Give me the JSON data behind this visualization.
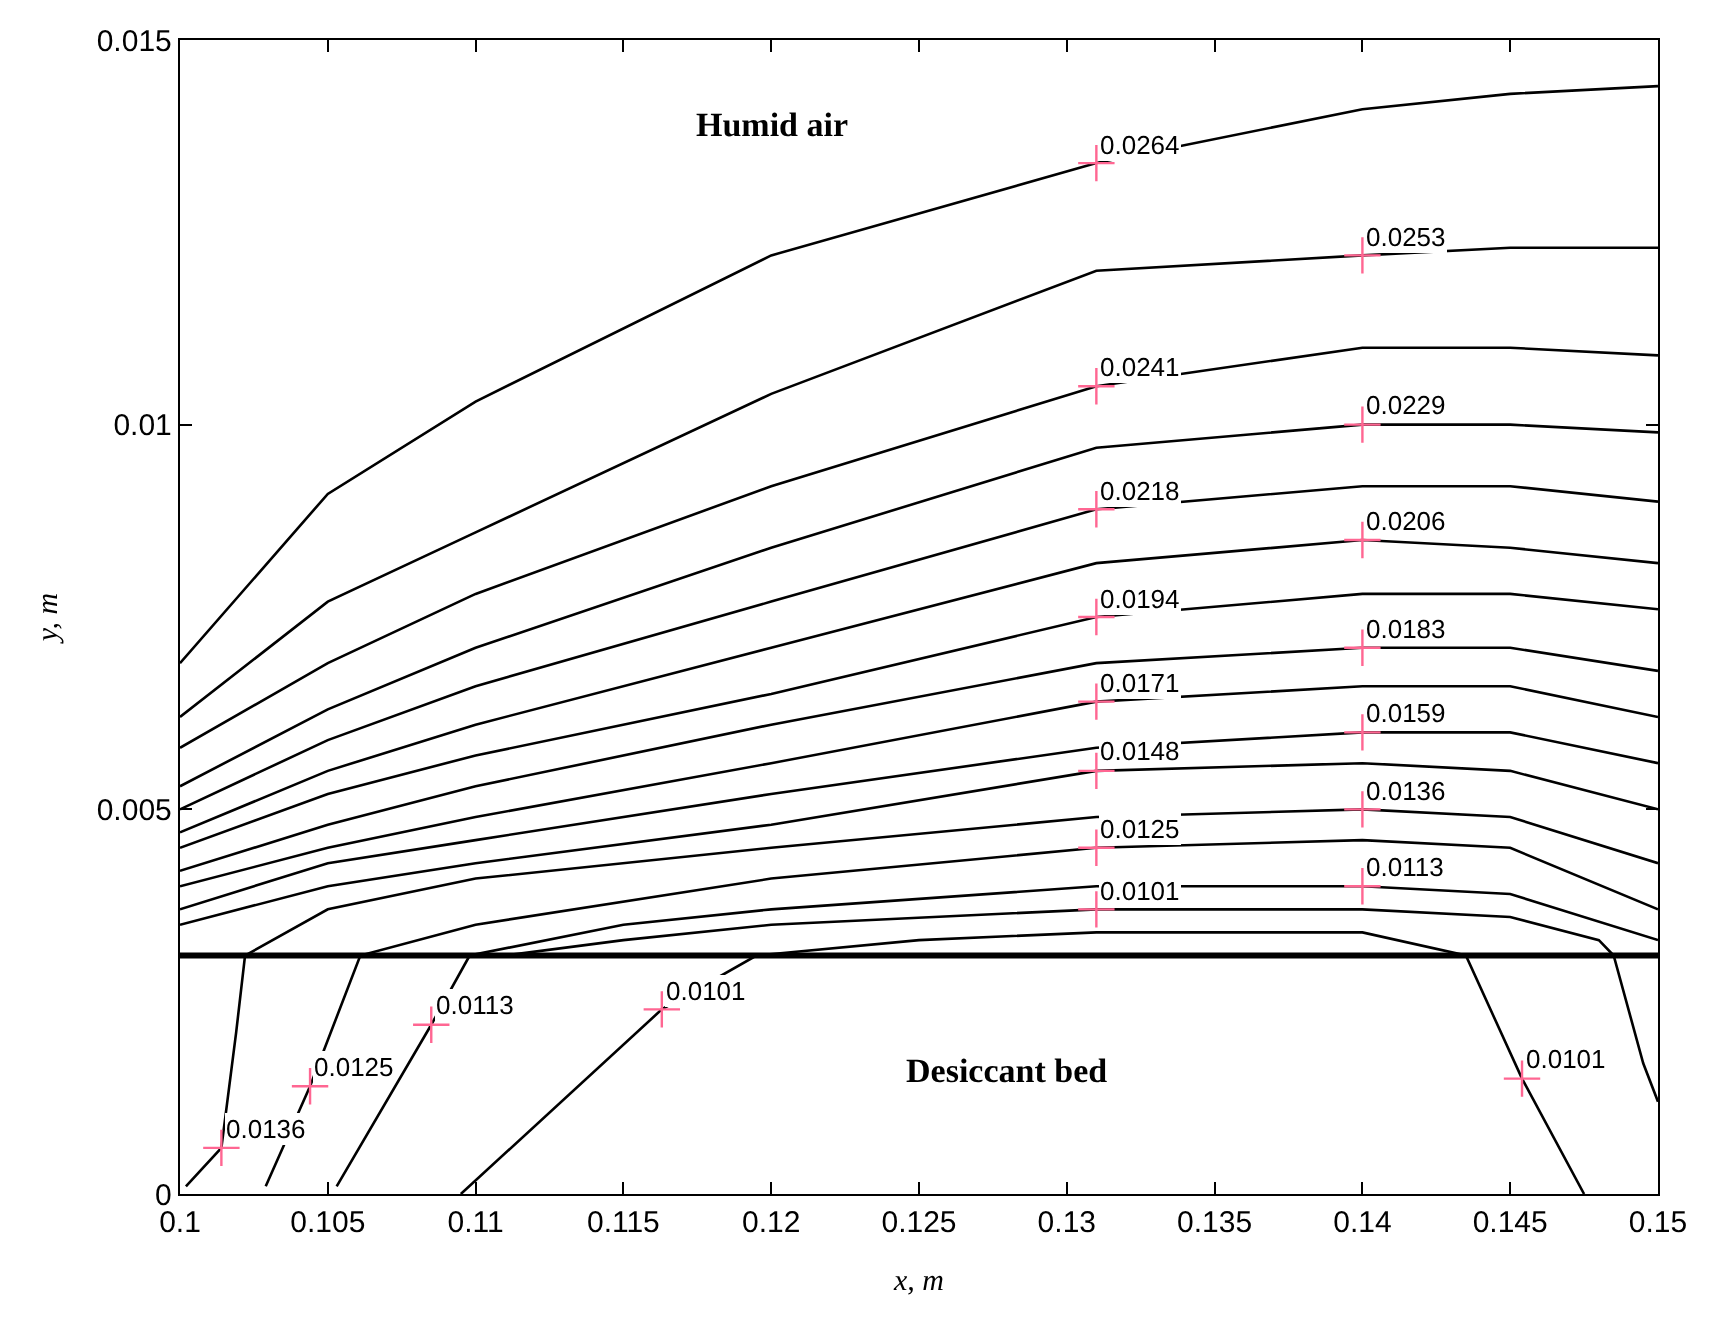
{
  "chart_data": {
    "type": "line",
    "xlabel": "x, m",
    "ylabel": "y, m",
    "xlim": [
      0.1,
      0.15
    ],
    "ylim": [
      0,
      0.015
    ],
    "xticks": [
      0.1,
      0.105,
      0.11,
      0.115,
      0.12,
      0.125,
      0.13,
      0.135,
      0.14,
      0.145,
      0.15
    ],
    "yticks": [
      0,
      0.005,
      0.01,
      0.015
    ],
    "marker": "none",
    "line_style": "solid",
    "x": [
      0.1,
      0.105,
      0.11,
      0.12,
      0.131,
      0.14,
      0.145,
      0.15
    ],
    "series": [
      {
        "color": "#000000",
        "values": [
          0.0069,
          0.0091,
          0.0103,
          0.0122,
          0.0134,
          0.0141,
          0.0143,
          0.0144
        ]
      },
      {
        "color": "#000000",
        "values": [
          0.0062,
          0.0077,
          0.0086,
          0.0104,
          0.012,
          0.0122,
          0.0123,
          0.0123
        ]
      },
      {
        "color": "#000000",
        "values": [
          0.0058,
          0.0069,
          0.0078,
          0.0092,
          0.0105,
          0.011,
          0.011,
          0.0109
        ]
      },
      {
        "color": "#000000",
        "values": [
          0.0053,
          0.0063,
          0.0071,
          0.0084,
          0.0097,
          0.01,
          0.01,
          0.0099
        ]
      },
      {
        "color": "#000000",
        "values": [
          0.005,
          0.0059,
          0.0066,
          0.0077,
          0.0089,
          0.0092,
          0.0092,
          0.009
        ]
      },
      {
        "color": "#000000",
        "values": [
          0.0047,
          0.0055,
          0.0061,
          0.0071,
          0.0082,
          0.0085,
          0.0084,
          0.0082
        ]
      },
      {
        "color": "#000000",
        "values": [
          0.0045,
          0.0052,
          0.0057,
          0.0065,
          0.0075,
          0.0078,
          0.0078,
          0.0076
        ]
      },
      {
        "color": "#000000",
        "values": [
          0.0042,
          0.0048,
          0.0053,
          0.0061,
          0.0069,
          0.0071,
          0.0071,
          0.0068
        ]
      },
      {
        "color": "#000000",
        "values": [
          0.004,
          0.0045,
          0.0049,
          0.0056,
          0.0064,
          0.0066,
          0.0066,
          0.0062
        ]
      },
      {
        "color": "#000000",
        "values": [
          0.0037,
          0.0043,
          0.0046,
          0.0052,
          0.0058,
          0.006,
          0.006,
          0.0056
        ]
      },
      {
        "color": "#000000",
        "values": [
          0.0035,
          0.004,
          0.0043,
          0.0048,
          0.0055,
          0.0056,
          0.0055,
          0.005
        ]
      },
      {
        "color": "#000000",
        "x": [
          0.1002,
          0.1014,
          0.1019,
          0.1022,
          0.105,
          0.11,
          0.12,
          0.131,
          0.14,
          0.145,
          0.15
        ],
        "values": [
          0.0001,
          0.0006,
          0.0021,
          0.0031,
          0.0037,
          0.0041,
          0.0045,
          0.0049,
          0.005,
          0.0049,
          0.0043
        ]
      },
      {
        "color": "#000000",
        "x": [
          0.1029,
          0.1044,
          0.1061,
          0.11,
          0.12,
          0.131,
          0.14,
          0.145,
          0.15
        ],
        "values": [
          0.0001,
          0.0014,
          0.0031,
          0.0035,
          0.0041,
          0.0045,
          0.0046,
          0.0045,
          0.0037
        ]
      },
      {
        "color": "#000000",
        "x": [
          0.1053,
          0.1085,
          0.1098,
          0.115,
          0.12,
          0.131,
          0.14,
          0.145,
          0.15
        ],
        "values": [
          0.0001,
          0.0022,
          0.0031,
          0.0035,
          0.0037,
          0.004,
          0.004,
          0.0039,
          0.0033
        ]
      },
      {
        "color": "#000000",
        "x": [
          0.111,
          0.115,
          0.12,
          0.131,
          0.14,
          0.145,
          0.148,
          0.1485,
          0.1495,
          0.15
        ],
        "values": [
          0.0031,
          0.0033,
          0.0035,
          0.0037,
          0.0037,
          0.0036,
          0.0033,
          0.0031,
          0.0017,
          0.0012
        ]
      },
      {
        "color": "#000000",
        "x": [
          0.1095,
          0.1163,
          0.1195,
          0.125,
          0.131,
          0.14,
          0.1435,
          0.1454,
          0.1475
        ],
        "values": [
          0,
          0.0024,
          0.0031,
          0.0033,
          0.0034,
          0.0034,
          0.0031,
          0.0015,
          0
        ]
      }
    ],
    "ref_lines": [
      {
        "axis": "y",
        "value": 0.0031,
        "color": "#000000"
      }
    ],
    "annotations": [
      "Humid air",
      "Desiccant bed",
      {
        "text": "0.0264",
        "x": 0.131,
        "y": 0.0134
      },
      {
        "text": "0.0253",
        "x": 0.14,
        "y": 0.0122
      },
      {
        "text": "0.0241",
        "x": 0.131,
        "y": 0.0105
      },
      {
        "text": "0.0229",
        "x": 0.14,
        "y": 0.01
      },
      {
        "text": "0.0218",
        "x": 0.131,
        "y": 0.0089
      },
      {
        "text": "0.0206",
        "x": 0.14,
        "y": 0.0085
      },
      {
        "text": "0.0194",
        "x": 0.131,
        "y": 0.0075
      },
      {
        "text": "0.0183",
        "x": 0.14,
        "y": 0.0071
      },
      {
        "text": "0.0171",
        "x": 0.131,
        "y": 0.0064
      },
      {
        "text": "0.0159",
        "x": 0.14,
        "y": 0.006
      },
      {
        "text": "0.0148",
        "x": 0.131,
        "y": 0.0055
      },
      {
        "text": "0.0136",
        "x": 0.14,
        "y": 0.005
      },
      {
        "text": "0.0125",
        "x": 0.131,
        "y": 0.0045
      },
      {
        "text": "0.0113",
        "x": 0.14,
        "y": 0.004
      },
      {
        "text": "0.0101",
        "x": 0.131,
        "y": 0.0037
      },
      {
        "text": "0.0113",
        "x": 0.1085,
        "y": 0.0022
      },
      {
        "text": "0.0125",
        "x": 0.1044,
        "y": 0.0014
      },
      {
        "text": "0.0136",
        "x": 0.1014,
        "y": 0.0006
      },
      {
        "text": "0.0101",
        "x": 0.1163,
        "y": 0.0024
      },
      {
        "text": "0.0101",
        "x": 0.1454,
        "y": 0.0015
      }
    ]
  }
}
